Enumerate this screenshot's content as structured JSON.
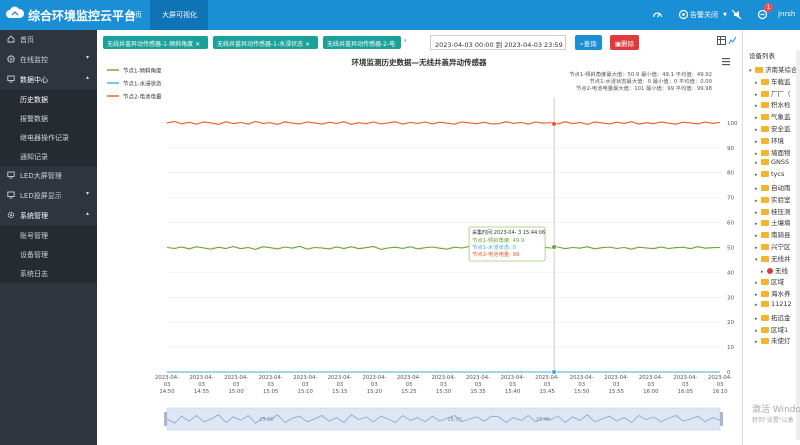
{
  "header": {
    "app_title": "综合环境监控云平台",
    "nav": [
      {
        "label": "首页"
      },
      {
        "label": "大屏可视化"
      }
    ],
    "alarm_label": "告警关闭",
    "badge": "1",
    "user": "jnrsh"
  },
  "sidebar": {
    "items": [
      {
        "label": "首页",
        "icon": "home-icon"
      },
      {
        "label": "在线监控",
        "icon": "globe-icon"
      },
      {
        "label": "数据中心",
        "icon": "monitor-icon"
      },
      {
        "label": "历史数据"
      },
      {
        "label": "报警数据"
      },
      {
        "label": "继电器操作记录"
      },
      {
        "label": "通知记录"
      },
      {
        "label": "LED大屏管理",
        "icon": "monitor-icon"
      },
      {
        "label": "LED投屏显示",
        "icon": "monitor-icon"
      },
      {
        "label": "系统管理",
        "icon": "gear-icon"
      },
      {
        "label": "账号管理"
      },
      {
        "label": "设备管理"
      },
      {
        "label": "系统日志"
      }
    ]
  },
  "filters": {
    "tags": [
      "无线井盖异动传感器-1-倾斜角度",
      "无线井盖异动传感器-1-水浸状态",
      "无线井盖异动传感器-2-电"
    ],
    "date_range": "2023-04-03 00:00 到 2023-04-03 23:59",
    "query_label": "查询",
    "delete_label": "删除"
  },
  "chart_data": {
    "type": "line",
    "title": "环境监测历史数据—无线井盖异动传感器",
    "legend": [
      {
        "name": "节点1-倾斜角度",
        "color": "#6fa334"
      },
      {
        "name": "节点1-水浸状态",
        "color": "#4aa8d8"
      },
      {
        "name": "节点2-电池电量",
        "color": "#f05a28"
      }
    ],
    "stats": [
      "节点1-倾斜角度最大值：50.9 最小值：49.1 平均值：49.92",
      "节点1-水浸状态最大值：0 最小值：0 平均值：0.00",
      "节点2-电池电量最大值：101 最小值：99 平均值：99.98"
    ],
    "ylim": [
      0,
      110
    ],
    "yticks": [
      "0",
      "10",
      "20",
      "30",
      "40",
      "50",
      "60",
      "70",
      "80",
      "90",
      "100"
    ],
    "xticks": [
      [
        "2023-04-",
        "03",
        "14:50"
      ],
      [
        "2023-04-",
        "03",
        "14:55"
      ],
      [
        "2023-04-",
        "03",
        "15:00"
      ],
      [
        "2023-04-",
        "03",
        "15:05"
      ],
      [
        "2023-04-",
        "03",
        "15:10"
      ],
      [
        "2023-04-",
        "03",
        "15:15"
      ],
      [
        "2023-04-",
        "03",
        "15:20"
      ],
      [
        "2023-04-",
        "03",
        "15:25"
      ],
      [
        "2023-04-",
        "03",
        "15:30"
      ],
      [
        "2023-04-",
        "03",
        "15:35"
      ],
      [
        "2023-04-",
        "03",
        "15:40"
      ],
      [
        "2023-04-",
        "03",
        "15:45"
      ],
      [
        "2023-04-",
        "03",
        "15:50"
      ],
      [
        "2023-04-",
        "03",
        "15:55"
      ],
      [
        "2023-04-",
        "03",
        "16:00"
      ],
      [
        "2023-04-",
        "03",
        "16:05"
      ],
      [
        "2023-04-",
        "03",
        "16:10"
      ]
    ],
    "series": [
      {
        "name": "节点1-倾斜角度",
        "color": "#6fa334",
        "values": [
          50,
          49.6,
          50.2,
          49.4,
          50.3,
          49.8,
          49.3,
          50.1,
          49.6,
          50.4,
          49.5,
          50,
          49.2,
          50.3,
          49.9,
          49.4,
          50.2,
          49.7,
          50.5,
          49.3,
          50,
          49.8,
          49.4,
          50.2,
          49.6,
          50.3,
          49.5,
          49.9,
          50.4,
          49.2,
          49.8,
          50.1,
          49.6,
          50.3,
          49.4,
          49.9,
          50.2,
          49.7,
          49.3,
          50.1,
          49.8,
          50.4,
          49.5,
          50,
          49.6,
          50.2,
          49.4,
          49.9,
          50.3,
          49.7,
          49.4,
          50.1,
          49.8,
          50.2,
          49.5,
          50,
          49.7,
          50.3,
          49.4,
          49.9,
          50.2,
          49.6,
          50,
          49.3,
          50.1,
          49.8,
          49.5,
          50.2,
          49.6,
          49.9,
          50.1,
          49.5,
          50.3,
          49.7,
          49.9,
          50
        ]
      },
      {
        "name": "节点1-水浸状态",
        "color": "#4aa8d8",
        "values": [
          0,
          0,
          0,
          0,
          0,
          0,
          0,
          0,
          0,
          0,
          0,
          0,
          0,
          0,
          0,
          0,
          0,
          0,
          0,
          0,
          0,
          0,
          0,
          0,
          0,
          0,
          0,
          0,
          0,
          0,
          0,
          0,
          0,
          0,
          0,
          0,
          0,
          0,
          0,
          0,
          0,
          0,
          0,
          0,
          0,
          0,
          0,
          0,
          0,
          0,
          0,
          0,
          0,
          0,
          0,
          0,
          0,
          0,
          0,
          0,
          0,
          0,
          0,
          0,
          0,
          0,
          0,
          0,
          0,
          0,
          0,
          0,
          0,
          0,
          0,
          0
        ]
      },
      {
        "name": "节点2-电池电量",
        "color": "#f05a28",
        "values": [
          100,
          100.6,
          99.6,
          100.3,
          99.5,
          100.4,
          100,
          99.4,
          100.5,
          99.7,
          100.2,
          99.5,
          100.6,
          99.8,
          100.1,
          99.4,
          100.5,
          99.9,
          99.6,
          100.4,
          100,
          99.5,
          100.3,
          99.8,
          100.5,
          99.4,
          100.1,
          99.7,
          100.4,
          99.6,
          100,
          100.5,
          99.5,
          100.2,
          99.8,
          100.4,
          99.6,
          100.3,
          99.9,
          99.5,
          100.4,
          100,
          99.7,
          100.3,
          99.6,
          99.7,
          100.5,
          99.8,
          100.2,
          99.5,
          100.4,
          99.9,
          100.1,
          99.6,
          100.5,
          99.7,
          100.2,
          99.4,
          100.4,
          100,
          99.6,
          100.3,
          99.8,
          100.5,
          99.5,
          100.1,
          99.7,
          100.4,
          99.9,
          99.5,
          100.3,
          100,
          99.6,
          100.4,
          99.8,
          100.2
        ]
      }
    ],
    "tooltip": {
      "time": "采集时间:2023-04-  3 15:44:06",
      "rows": [
        {
          "label": "节点1-倾斜角度: 49.9",
          "color": "#6fa334"
        },
        {
          "label": "节点1-水浸状态: 0",
          "color": "#4aa8d8"
        },
        {
          "label": "节点2-电池电量: 99",
          "color": "#f05a28"
        }
      ]
    },
    "zoom_labels": [
      "15:00",
      "15:30",
      "15:45"
    ]
  },
  "device_panel": {
    "title": "设备列表",
    "items": [
      "济南某综合",
      "车载监",
      "厂厂（",
      "积水检",
      "气象监",
      "安全监",
      "环境",
      "墙面物",
      "GNSS",
      "tycs",
      "自动雨",
      "实验室",
      "桂压测",
      "土壤墒",
      "南骑县",
      "兴宁区",
      "无线井",
      "无线",
      "区域",
      "海水养",
      "11212",
      "拓远金",
      "区域1",
      "未使灯"
    ]
  },
  "watermark": {
    "line1": "激活 Windo",
    "line2": "转到\"设置\"以激"
  }
}
